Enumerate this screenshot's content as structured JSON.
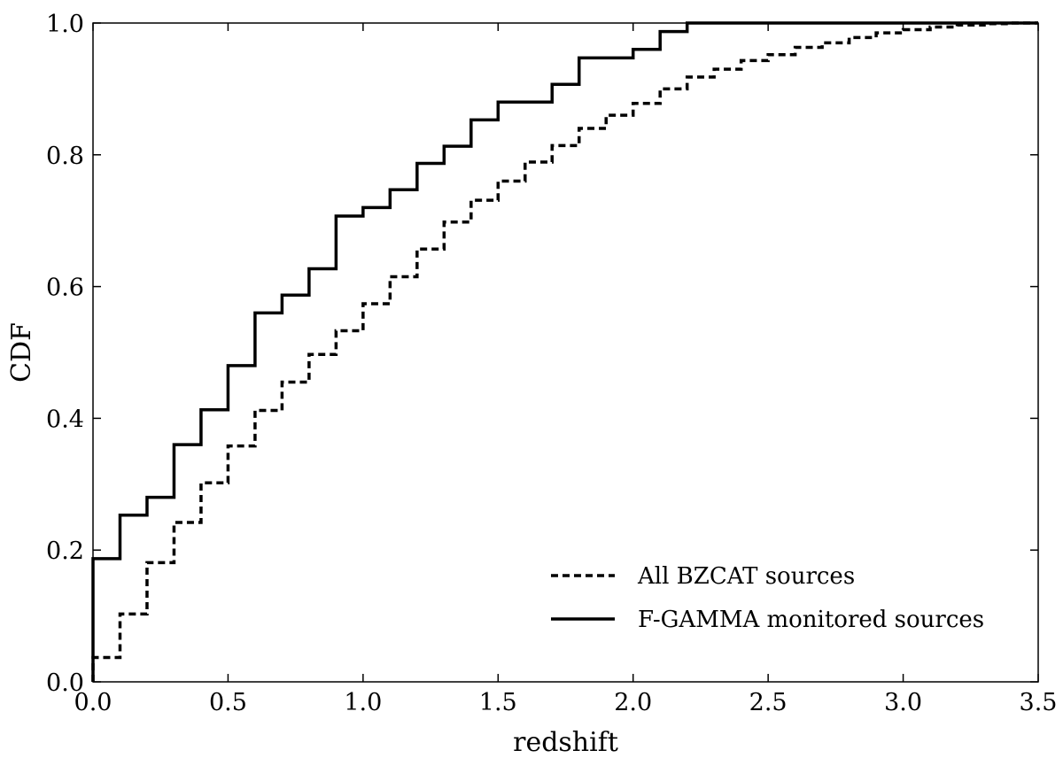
{
  "chart_data": {
    "type": "line",
    "step": true,
    "xlabel": "redshift",
    "ylabel": "CDF",
    "xlim": [
      0.0,
      3.5
    ],
    "ylim": [
      0.0,
      1.0
    ],
    "xticks": [
      "0.0",
      "0.5",
      "1.0",
      "1.5",
      "2.0",
      "2.5",
      "3.0",
      "3.5"
    ],
    "yticks": [
      "0.0",
      "0.2",
      "0.4",
      "0.6",
      "0.8",
      "1.0"
    ],
    "grid": false,
    "legend_position": "bottom-right",
    "series": [
      {
        "name": "All BZCAT sources",
        "style": "dashed",
        "color": "#000000",
        "x": [
          0.0,
          0.1,
          0.2,
          0.3,
          0.4,
          0.5,
          0.6,
          0.7,
          0.8,
          0.9,
          1.0,
          1.1,
          1.2,
          1.3,
          1.4,
          1.5,
          1.6,
          1.7,
          1.8,
          1.9,
          2.0,
          2.1,
          2.2,
          2.3,
          2.4,
          2.5,
          2.6,
          2.7,
          2.8,
          2.9,
          3.0,
          3.1,
          3.2,
          3.3,
          3.4,
          3.5
        ],
        "y": [
          0.037,
          0.103,
          0.181,
          0.242,
          0.302,
          0.358,
          0.412,
          0.455,
          0.497,
          0.533,
          0.574,
          0.615,
          0.657,
          0.698,
          0.731,
          0.76,
          0.789,
          0.814,
          0.84,
          0.86,
          0.878,
          0.9,
          0.918,
          0.93,
          0.943,
          0.952,
          0.963,
          0.97,
          0.978,
          0.985,
          0.99,
          0.994,
          0.997,
          0.999,
          1.0,
          1.0
        ]
      },
      {
        "name": "F-GAMMA monitored sources",
        "style": "solid",
        "color": "#000000",
        "x": [
          0.0,
          0.1,
          0.2,
          0.3,
          0.4,
          0.5,
          0.6,
          0.7,
          0.8,
          0.9,
          1.0,
          1.1,
          1.2,
          1.3,
          1.4,
          1.5,
          1.6,
          1.7,
          1.8,
          1.9,
          2.0,
          2.1,
          2.2,
          3.5
        ],
        "y": [
          0.187,
          0.253,
          0.28,
          0.36,
          0.413,
          0.48,
          0.56,
          0.587,
          0.627,
          0.707,
          0.72,
          0.747,
          0.787,
          0.813,
          0.853,
          0.88,
          0.88,
          0.907,
          0.947,
          0.947,
          0.96,
          0.987,
          1.0,
          1.0
        ]
      }
    ]
  }
}
